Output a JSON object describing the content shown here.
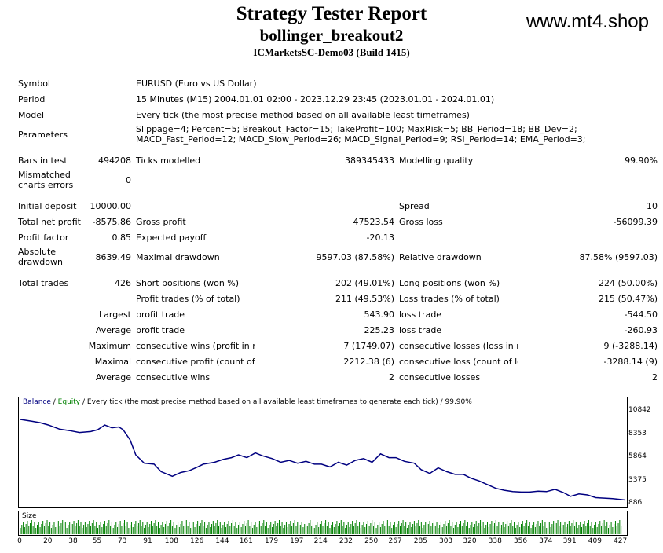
{
  "report": {
    "title": "Strategy Tester Report",
    "ea": "bollinger_breakout2",
    "server": "ICMarketsSC-Demo03 (Build 1415)",
    "site": "www.mt4.shop"
  },
  "info": {
    "symbol_label": "Symbol",
    "symbol": "EURUSD (Euro vs US Dollar)",
    "period_label": "Period",
    "period": "15 Minutes (M15) 2004.01.01 02:00 - 2023.12.29 23:45 (2023.01.01 - 2024.01.01)",
    "model_label": "Model",
    "model": "Every tick (the most precise method based on all available least timeframes)",
    "params_label": "Parameters",
    "params": "Slippage=4; Percent=5; Breakout_Factor=15; TakeProfit=100; MaxRisk=5; BB_Period=18; BB_Dev=2; MACD_Fast_Period=12; MACD_Slow_Period=26; MACD_Signal_Period=9; RSI_Period=14; EMA_Period=3;"
  },
  "test": {
    "bars_label": "Bars in test",
    "bars": "494208",
    "ticks_label": "Ticks modelled",
    "ticks": "389345433",
    "quality_label": "Modelling quality",
    "quality": "99.90%",
    "mismatch_label": "Mismatched charts errors",
    "mismatch": "0"
  },
  "results": {
    "initial_deposit_label": "Initial deposit",
    "initial_deposit": "10000.00",
    "spread_label": "Spread",
    "spread": "10",
    "net_profit_label": "Total net profit",
    "net_profit": "-8575.86",
    "gross_profit_label": "Gross profit",
    "gross_profit": "47523.54",
    "gross_loss_label": "Gross loss",
    "gross_loss": "-56099.39",
    "profit_factor_label": "Profit factor",
    "profit_factor": "0.85",
    "expected_payoff_label": "Expected payoff",
    "expected_payoff": "-20.13",
    "abs_dd_label": "Absolute drawdown",
    "abs_dd": "8639.49",
    "max_dd_label": "Maximal drawdown",
    "max_dd": "9597.03 (87.58%)",
    "rel_dd_label": "Relative drawdown",
    "rel_dd": "87.58% (9597.03)"
  },
  "trades": {
    "total_label": "Total trades",
    "total": "426",
    "short_label": "Short positions (won %)",
    "short": "202 (49.01%)",
    "long_label": "Long positions (won %)",
    "long": "224 (50.00%)",
    "profit_trades_label": "Profit trades (% of total)",
    "profit_trades": "211 (49.53%)",
    "loss_trades_label": "Loss trades (% of total)",
    "loss_trades": "215 (50.47%)",
    "largest_label": "Largest",
    "largest_profit_label": "profit trade",
    "largest_profit": "543.90",
    "largest_loss_label": "loss trade",
    "largest_loss": "-544.50",
    "average_label": "Average",
    "average_profit_label": "profit trade",
    "average_profit": "225.23",
    "average_loss_label": "loss trade",
    "average_loss": "-260.93",
    "maximum_label": "Maximum",
    "max_cons_wins_label": "consecutive wins (profit in money)",
    "max_cons_wins": "7 (1749.07)",
    "max_cons_losses_label": "consecutive losses (loss in money)",
    "max_cons_losses": "9 (-3288.14)",
    "maximal_label": "Maximal",
    "maximal_cons_profit_label": "consecutive profit (count of wins)",
    "maximal_cons_profit": "2212.38 (6)",
    "maximal_cons_loss_label": "consecutive loss (count of losses)",
    "maximal_cons_loss": "-3288.14 (9)",
    "avg_label": "Average",
    "avg_cons_wins_label": "consecutive wins",
    "avg_cons_wins": "2",
    "avg_cons_losses_label": "consecutive losses",
    "avg_cons_losses": "2"
  },
  "chart_data": {
    "type": "line",
    "legend_balance": "Balance",
    "legend_sep": " / ",
    "legend_equity": "Equity",
    "legend_rest": " / Every tick (the most precise method based on all available least timeframes to generate each tick) / 99.90%",
    "size_label": "Size",
    "yticks": [
      10842,
      8353,
      5864,
      3375,
      886
    ],
    "ylim": [
      886,
      10842
    ],
    "xticks": [
      0,
      20,
      38,
      55,
      73,
      91,
      108,
      126,
      144,
      161,
      179,
      197,
      214,
      232,
      250,
      267,
      285,
      303,
      320,
      338,
      356,
      374,
      391,
      409,
      427
    ],
    "xlim": [
      0,
      430
    ],
    "series": [
      {
        "x": [
          0,
          8,
          14,
          20,
          28,
          35,
          42,
          50,
          55,
          60,
          65,
          70,
          73,
          78,
          82,
          88,
          95,
          100,
          108,
          114,
          120,
          126,
          130,
          138,
          144,
          150,
          155,
          161,
          167,
          172,
          179,
          185,
          191,
          197,
          203,
          209,
          214,
          220,
          226,
          232,
          238,
          244,
          250,
          256,
          262,
          267,
          273,
          280,
          285,
          291,
          297,
          303,
          309,
          315,
          320,
          326,
          332,
          338,
          344,
          350,
          356,
          362,
          368,
          374,
          380,
          386,
          391,
          397,
          403,
          409,
          415,
          421,
          427,
          430
        ],
        "y": [
          10000,
          9800,
          9650,
          9400,
          8950,
          8800,
          8600,
          8700,
          8900,
          9400,
          9100,
          9200,
          8900,
          7800,
          6200,
          5300,
          5200,
          4400,
          3900,
          4300,
          4500,
          4900,
          5200,
          5400,
          5700,
          5900,
          6200,
          5900,
          6400,
          6100,
          5800,
          5400,
          5600,
          5300,
          5500,
          5200,
          5200,
          4900,
          5400,
          5100,
          5600,
          5800,
          5400,
          6300,
          5900,
          5900,
          5500,
          5300,
          4600,
          4200,
          4800,
          4400,
          4100,
          4100,
          3700,
          3400,
          3000,
          2600,
          2400,
          2250,
          2200,
          2200,
          2300,
          2250,
          2500,
          2150,
          1750,
          2000,
          1900,
          1600,
          1550,
          1500,
          1400,
          1350
        ]
      }
    ],
    "colors": {
      "line": "#000080",
      "volume": "#008000"
    }
  }
}
